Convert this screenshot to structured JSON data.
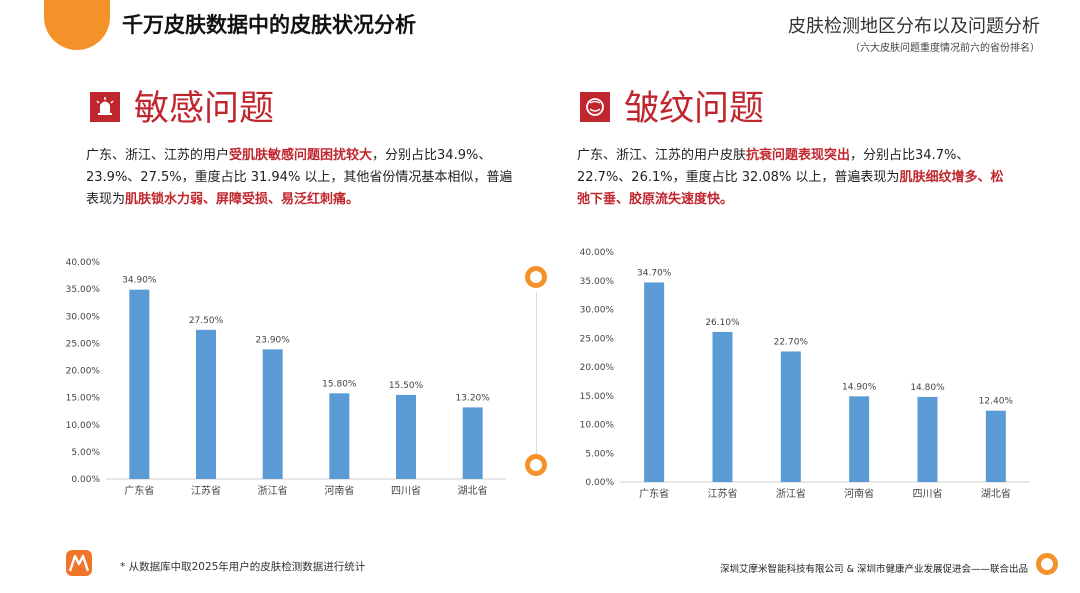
{
  "header": {
    "main_title": "千万皮肤数据中的皮肤状况分析",
    "right_title": "皮肤检测地区分布以及问题分析",
    "right_subtitle": "（六大皮肤问题重度情况前六的省份排名）"
  },
  "left": {
    "heading": "敏感问题",
    "icon": "alarm-icon",
    "desc": [
      "广东、浙江、江苏的用户",
      "受肌肤敏感问题困扰较大",
      "，分别占比34.9%、23.9%、27.5%，重度占比 31.94% 以上，其他省份情况基本相似，普遍表现为",
      "肌肤锁水力弱、屏障受损、易泛红刺痛。"
    ]
  },
  "right": {
    "heading": "皱纹问题",
    "icon": "face-icon",
    "desc": [
      "广东、浙江、江苏的用户皮肤",
      "抗衰问题表现突出",
      "，分别占比34.7%、22.7%、26.1%，重度占比 32.08% 以上，普遍表现为",
      "肌肤细纹增多、松弛下垂、胶原流失速度快。"
    ]
  },
  "chart_data": [
    {
      "type": "bar",
      "categories": [
        "广东省",
        "江苏省",
        "浙江省",
        "河南省",
        "四川省",
        "湖北省"
      ],
      "values": [
        34.9,
        27.5,
        23.9,
        15.8,
        15.5,
        13.2
      ],
      "value_labels": [
        "34.90%",
        "27.50%",
        "23.90%",
        "15.80%",
        "15.50%",
        "13.20%"
      ],
      "ylim": [
        0,
        40
      ],
      "yticks": [
        "0.00%",
        "5.00%",
        "10.00%",
        "15.00%",
        "20.00%",
        "25.00%",
        "30.00%",
        "35.00%",
        "40.00%"
      ],
      "color": "#5b9bd5",
      "grid": false
    },
    {
      "type": "bar",
      "categories": [
        "广东省",
        "江苏省",
        "浙江省",
        "河南省",
        "四川省",
        "湖北省"
      ],
      "values": [
        34.7,
        26.1,
        22.7,
        14.9,
        14.8,
        12.4
      ],
      "value_labels": [
        "34.70%",
        "26.10%",
        "22.70%",
        "14.90%",
        "14.80%",
        "12.40%"
      ],
      "ylim": [
        0,
        40
      ],
      "yticks": [
        "0.00%",
        "5.00%",
        "10.00%",
        "15.00%",
        "20.00%",
        "25.00%",
        "30.00%",
        "35.00%",
        "40.00%"
      ],
      "color": "#5b9bd5",
      "grid": false
    }
  ],
  "footer": {
    "footnote": "* 从数据库中取2025年用户的皮肤检测数据进行统计",
    "org": "深圳艾摩米智能科技有限公司 & 深圳市健康产业发展促进会——联合出品",
    "logo": "brand-logo-icon"
  },
  "colors": {
    "accent": "#c0262d",
    "orange": "#f4922a",
    "bar": "#5b9bd5"
  }
}
